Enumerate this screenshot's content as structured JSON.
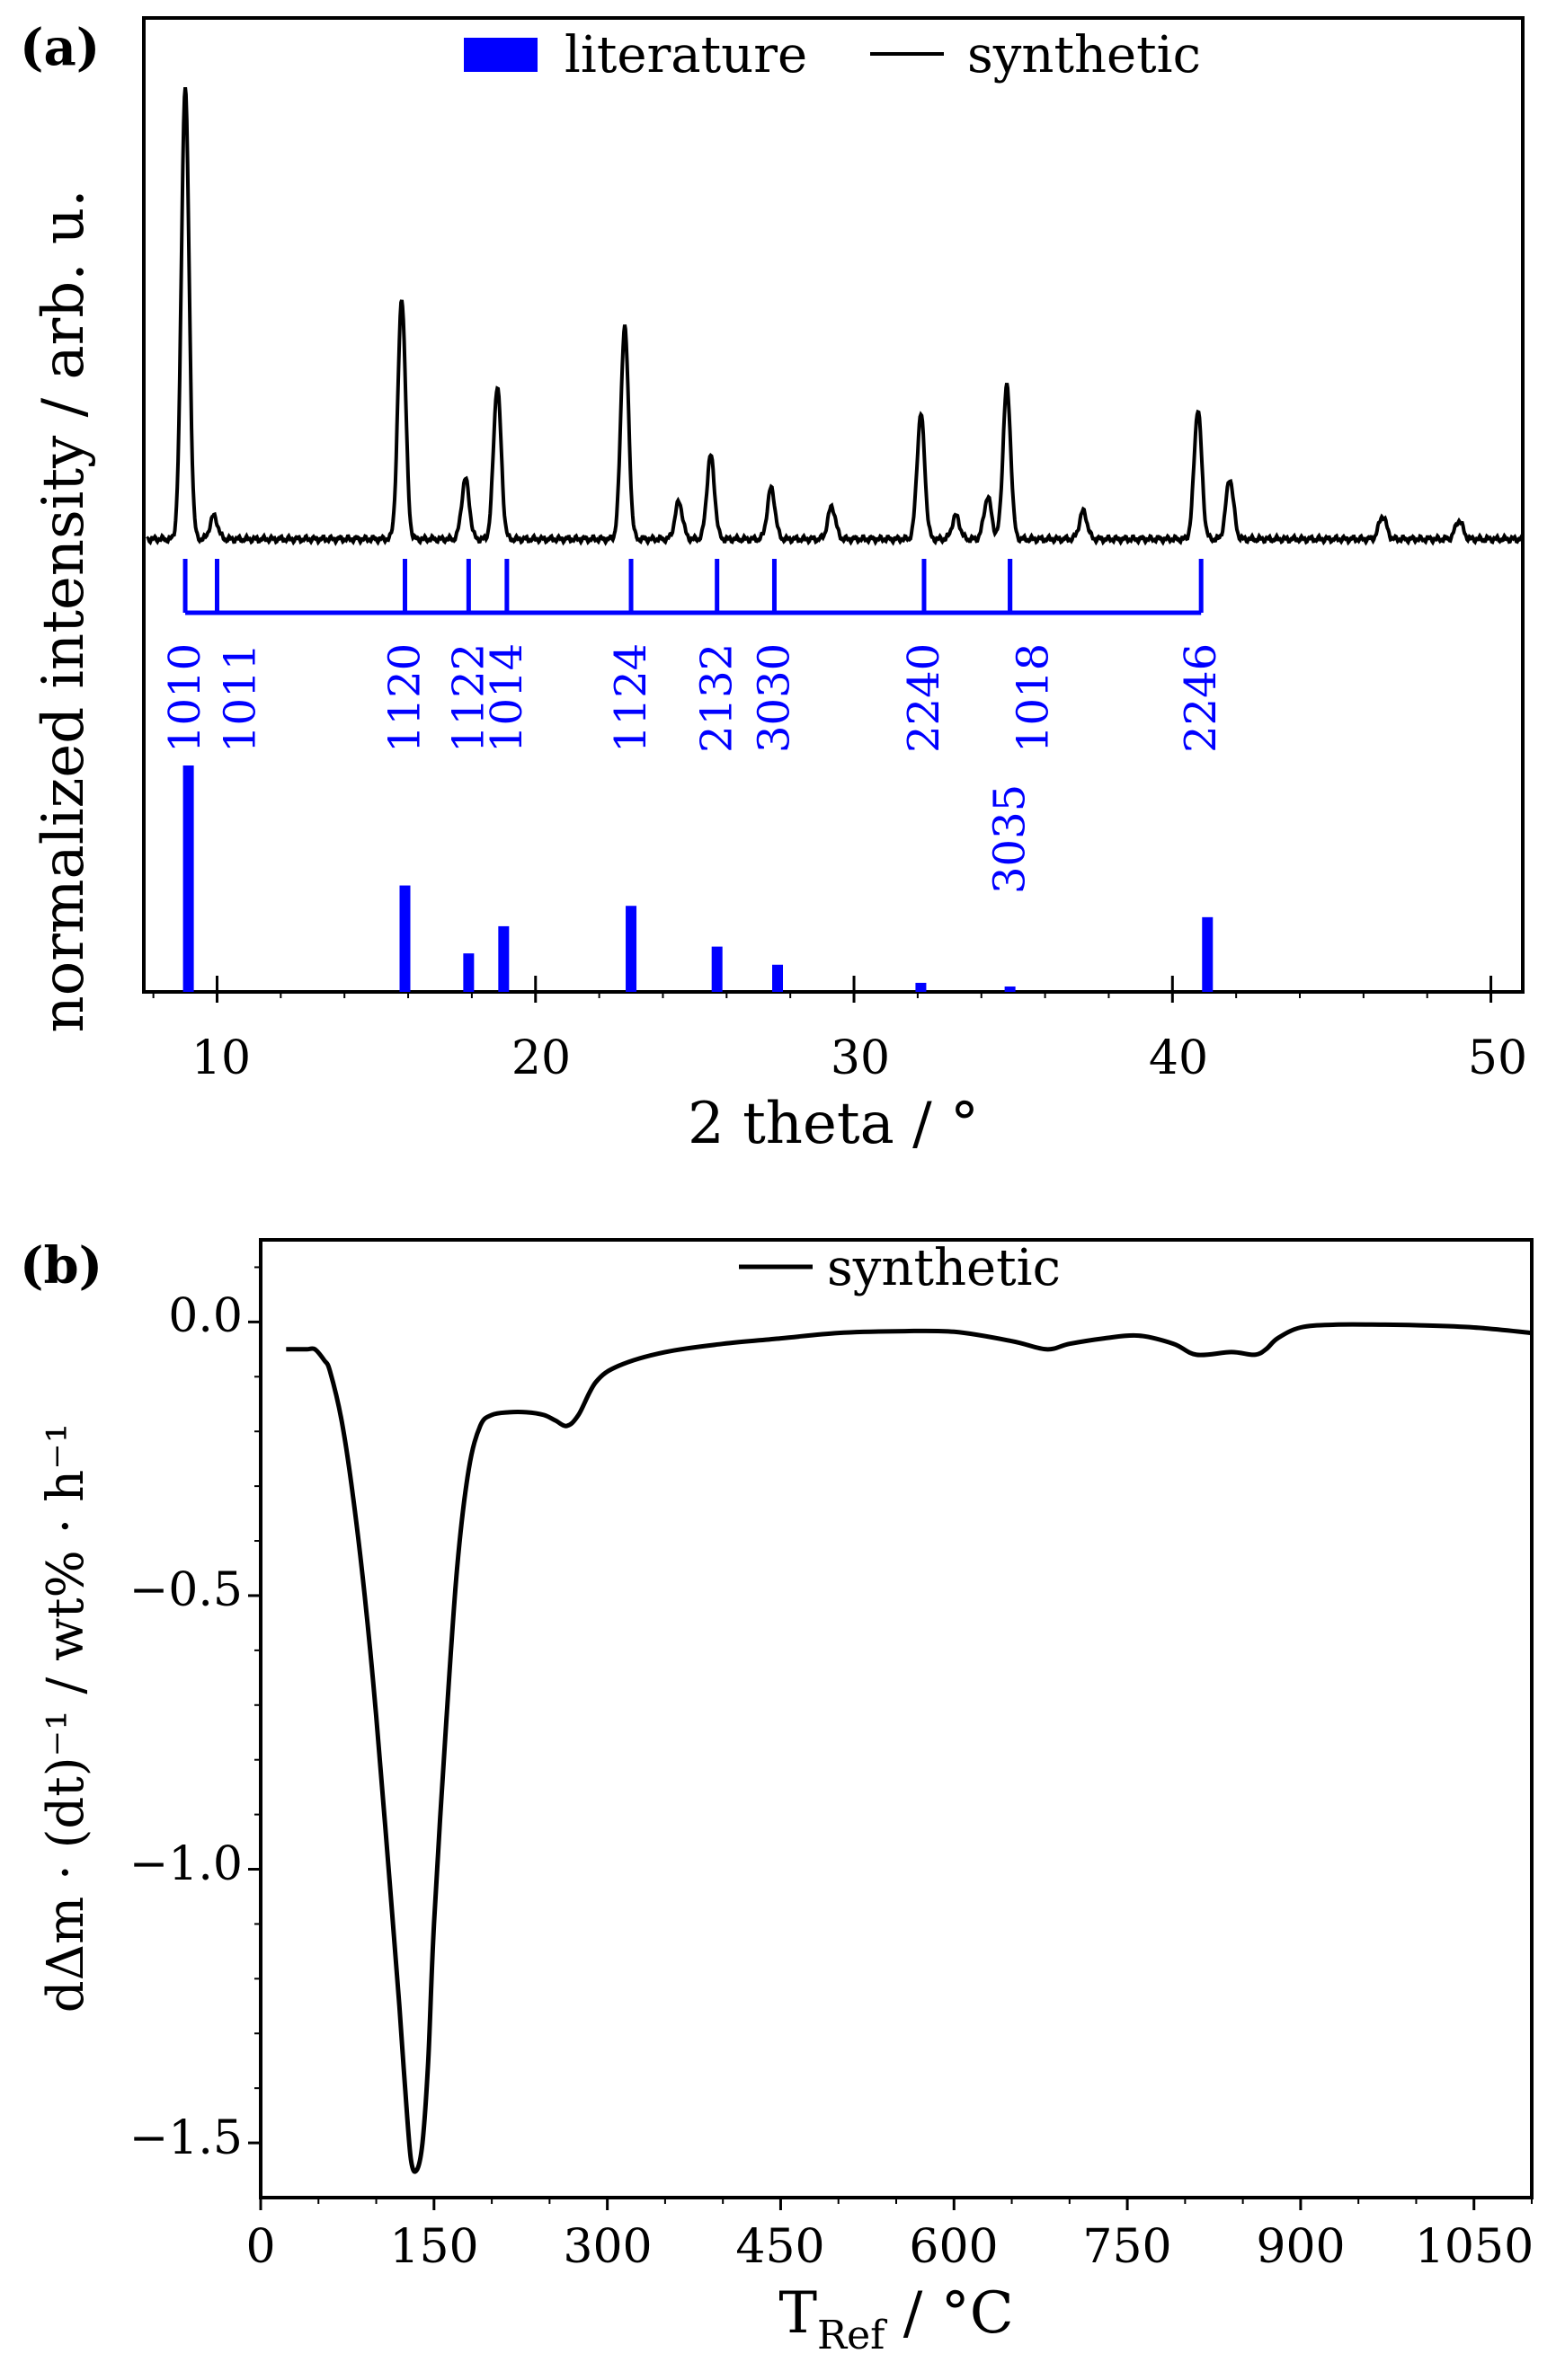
{
  "chart_data": [
    {
      "panel": "(a)",
      "type": "line",
      "xlabel": "2 theta / °",
      "ylabel": "normalized intensity / arb. u.",
      "xlim": [
        7.7,
        51
      ],
      "xticks": [
        "10",
        "20",
        "30",
        "40",
        "50"
      ],
      "legend": [
        "literature",
        "synthetic"
      ],
      "colors": {
        "literature": "#0000ff",
        "synthetic": "#000000"
      },
      "series": [
        {
          "name": "synthetic",
          "baseline": 0.02,
          "peaks": [
            {
              "x": 9.0,
              "h": 0.98
            },
            {
              "x": 9.9,
              "h": 0.05
            },
            {
              "x": 15.8,
              "h": 0.52
            },
            {
              "x": 17.8,
              "h": 0.13
            },
            {
              "x": 18.8,
              "h": 0.33
            },
            {
              "x": 22.8,
              "h": 0.46
            },
            {
              "x": 24.5,
              "h": 0.08
            },
            {
              "x": 25.5,
              "h": 0.18
            },
            {
              "x": 27.4,
              "h": 0.11
            },
            {
              "x": 29.3,
              "h": 0.07
            },
            {
              "x": 32.1,
              "h": 0.27
            },
            {
              "x": 33.2,
              "h": 0.05
            },
            {
              "x": 34.2,
              "h": 0.09
            },
            {
              "x": 34.8,
              "h": 0.33
            },
            {
              "x": 37.2,
              "h": 0.06
            },
            {
              "x": 40.8,
              "h": 0.28
            },
            {
              "x": 41.8,
              "h": 0.13
            },
            {
              "x": 46.6,
              "h": 0.05
            },
            {
              "x": 49.0,
              "h": 0.04
            }
          ]
        },
        {
          "name": "literature",
          "bars": [
            {
              "x": 9.1,
              "h": 1.0
            },
            {
              "x": 15.9,
              "h": 0.47
            },
            {
              "x": 17.9,
              "h": 0.17
            },
            {
              "x": 19.0,
              "h": 0.29
            },
            {
              "x": 23.0,
              "h": 0.38
            },
            {
              "x": 25.7,
              "h": 0.2
            },
            {
              "x": 27.6,
              "h": 0.12
            },
            {
              "x": 32.1,
              "h": 0.04
            },
            {
              "x": 34.9,
              "h": 0.01
            },
            {
              "x": 41.1,
              "h": 0.33
            }
          ]
        }
      ],
      "reflections": [
        {
          "x": 9.0,
          "label": "1010"
        },
        {
          "x": 10.0,
          "label": "1011"
        },
        {
          "x": 15.9,
          "label": "1120"
        },
        {
          "x": 17.9,
          "label": "1122"
        },
        {
          "x": 19.1,
          "label": "1014"
        },
        {
          "x": 23.0,
          "label": "1124"
        },
        {
          "x": 25.7,
          "label": "2132"
        },
        {
          "x": 27.5,
          "label": "3030"
        },
        {
          "x": 32.2,
          "label": "2240"
        },
        {
          "x": 34.9,
          "label": "1018"
        },
        {
          "x": 34.9,
          "label": "3035"
        },
        {
          "x": 40.9,
          "label": "2246"
        }
      ]
    },
    {
      "panel": "(b)",
      "type": "line",
      "xlabel_main": "T",
      "xlabel_sub": "Ref",
      "xlabel_unit": " / °C",
      "ylabel": "dΔm · (dt)⁻¹ / wt% · h⁻¹",
      "xlim": [
        0,
        1100
      ],
      "ylim": [
        -1.6,
        0.15
      ],
      "xticks": [
        "0",
        "150",
        "300",
        "450",
        "600",
        "750",
        "900",
        "1050"
      ],
      "yticks": [
        "0.0",
        "−0.5",
        "−1.0",
        "−1.5"
      ],
      "legend": [
        "synthetic"
      ],
      "series": [
        {
          "name": "synthetic",
          "x": [
            22,
            30,
            40,
            47,
            55,
            60,
            70,
            80,
            90,
            100,
            110,
            120,
            125,
            130,
            135,
            140,
            145,
            150,
            160,
            170,
            180,
            190,
            200,
            215,
            230,
            245,
            255,
            265,
            275,
            290,
            310,
            350,
            400,
            450,
            500,
            550,
            600,
            650,
            680,
            700,
            730,
            760,
            790,
            810,
            840,
            860,
            870,
            880,
            900,
            930,
            970,
            1000,
            1050,
            1100
          ],
          "y": [
            -0.05,
            -0.05,
            -0.05,
            -0.05,
            -0.07,
            -0.09,
            -0.18,
            -0.32,
            -0.5,
            -0.72,
            -0.98,
            -1.25,
            -1.4,
            -1.53,
            -1.55,
            -1.5,
            -1.35,
            -1.1,
            -0.75,
            -0.45,
            -0.27,
            -0.19,
            -0.17,
            -0.165,
            -0.165,
            -0.17,
            -0.18,
            -0.19,
            -0.17,
            -0.11,
            -0.08,
            -0.055,
            -0.04,
            -0.03,
            -0.02,
            -0.017,
            -0.018,
            -0.035,
            -0.05,
            -0.04,
            -0.03,
            -0.025,
            -0.04,
            -0.06,
            -0.055,
            -0.06,
            -0.05,
            -0.03,
            -0.01,
            -0.005,
            -0.005,
            -0.006,
            -0.01,
            -0.02
          ]
        }
      ]
    }
  ]
}
